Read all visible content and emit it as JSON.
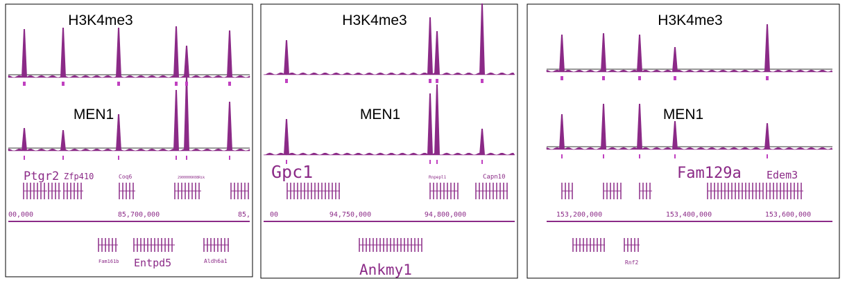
{
  "panels": [
    {
      "tracks": [
        "H3K4me3",
        "MEN1"
      ],
      "genes": [
        "Ptgr2",
        "Zfp410",
        "Coq6",
        "2900006K08Rik",
        "Fam161b",
        "Entpd5",
        "Aldh6a1"
      ],
      "coords": [
        "00,000",
        "85,700,000",
        "85,"
      ]
    },
    {
      "tracks": [
        "H3K4me3",
        "MEN1"
      ],
      "genes": [
        "Gpc1",
        "Rnpepl1",
        "Capn10",
        "Ankmy1"
      ],
      "coords": [
        "00",
        "94,750,000",
        "94,800,000"
      ]
    },
    {
      "tracks": [
        "H3K4me3",
        "MEN1"
      ],
      "genes": [
        "Fam129a",
        "Edem3",
        "Rnf2"
      ],
      "coords": [
        "153,200,000",
        "153,400,000",
        "153,600,000"
      ]
    }
  ]
}
